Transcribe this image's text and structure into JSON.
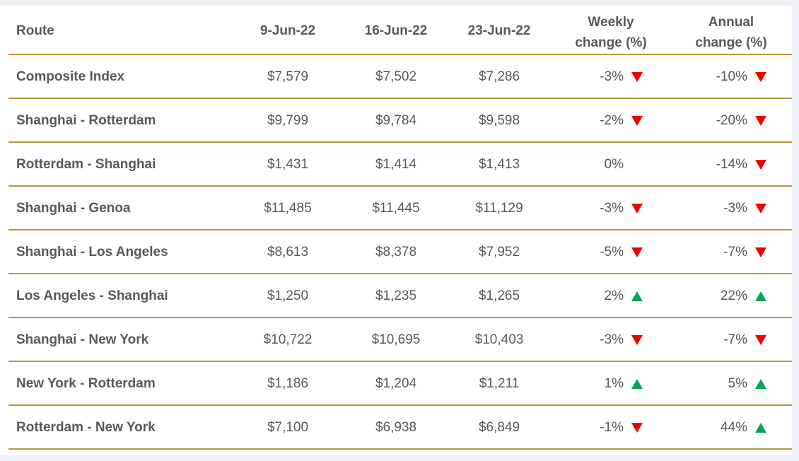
{
  "table": {
    "header": [
      "Route",
      "9-Jun-22",
      "16-Jun-22",
      "23-Jun-22",
      "Weekly change (%)",
      "Annual change (%)"
    ],
    "rows": [
      [
        "Composite Index",
        "$7,579",
        "$7,502",
        "$7,286",
        "-3%",
        "-10%"
      ],
      [
        "Shanghai - Rotterdam",
        "$9,799",
        "$9,784",
        "$9,598",
        "-2%",
        "-20%"
      ],
      [
        "Rotterdam - Shanghai",
        "$1,431",
        "$1,414",
        "$1,413",
        "0%",
        "-14%"
      ],
      [
        "Shanghai - Genoa",
        "$11,485",
        "$11,445",
        "$11,129",
        "-3%",
        "-3%"
      ],
      [
        "Shanghai - Los Angeles",
        "$8,613",
        "$8,378",
        "$7,952",
        "-5%",
        "-7%"
      ],
      [
        "Los Angeles - Shanghai",
        "$1,250",
        "$1,235",
        "$1,265",
        "2%",
        "22%"
      ],
      [
        "Shanghai - New York",
        "$10,722",
        "$10,695",
        "$10,403",
        "-3%",
        "-7%"
      ],
      [
        "New York - Rotterdam",
        "$1,186",
        "$1,204",
        "$1,211",
        "1%",
        "5%"
      ],
      [
        "Rotterdam - New York",
        "$7,100",
        "$6,938",
        "$6,849",
        "-1%",
        "44%"
      ]
    ]
  }
}
